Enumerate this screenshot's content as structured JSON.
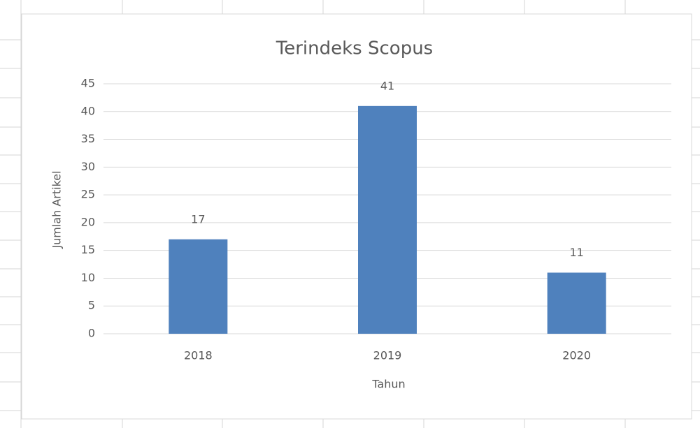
{
  "chart_data": {
    "type": "bar",
    "title": "Terindeks Scopus",
    "xlabel": "Tahun",
    "ylabel": "Jumlah Artikel",
    "categories": [
      "2018",
      "2019",
      "2020"
    ],
    "values": [
      17,
      41,
      11
    ],
    "color": "#4f81bd",
    "ylim": [
      0,
      45
    ],
    "yticks": [
      0,
      5,
      10,
      15,
      20,
      25,
      30,
      35,
      40,
      45
    ],
    "grid": true
  }
}
